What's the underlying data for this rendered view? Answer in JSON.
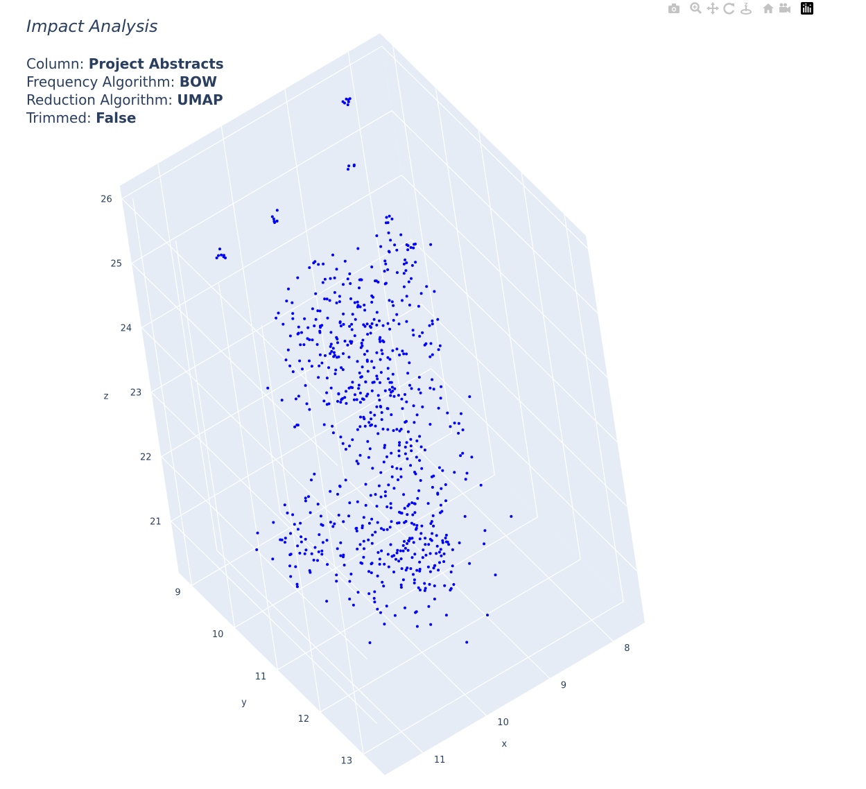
{
  "modebar": {
    "buttons": [
      {
        "name": "camera-icon",
        "title": "Download plot as a png"
      },
      {
        "name": "zoom-icon",
        "title": "Zoom"
      },
      {
        "name": "pan-icon",
        "title": "Pan"
      },
      {
        "name": "orbit-rotation-icon",
        "title": "Orbital rotation"
      },
      {
        "name": "turntable-rotation-icon",
        "title": "Turntable rotation"
      },
      {
        "name": "home-icon",
        "title": "Reset camera to default"
      },
      {
        "name": "camera-view-icon",
        "title": "Reset camera to last save"
      },
      {
        "name": "plotly-logo-icon",
        "title": "Produced with Plotly"
      }
    ]
  },
  "header": {
    "title": "Impact Analysis",
    "lines": [
      {
        "label": "Column: ",
        "value": "Project Abstracts"
      },
      {
        "label": "Frequency Algorithm: ",
        "value": "BOW"
      },
      {
        "label": "Reduction Algorithm: ",
        "value": "UMAP"
      },
      {
        "label": "Trimmed: ",
        "value": "False"
      }
    ]
  },
  "chart_data": {
    "type": "scatter3d",
    "title": "Impact Analysis",
    "marker_color": "#0000ff",
    "background_color": "#e5ecf6",
    "grid": true,
    "axes": {
      "x": {
        "label": "x",
        "ticks": [
          8,
          9,
          10,
          11
        ],
        "range": [
          7.5,
          11.6
        ]
      },
      "y": {
        "label": "y",
        "ticks": [
          9,
          10,
          11,
          12,
          13
        ],
        "range": [
          8.7,
          13.5
        ]
      },
      "z": {
        "label": "z",
        "ticks": [
          21,
          22,
          23,
          24,
          25,
          26
        ],
        "range": [
          20.2,
          26.2
        ]
      }
    },
    "clusters": [
      {
        "center": [
          9.8,
          11.6,
          21.5
        ],
        "spread": [
          0.45,
          0.5,
          0.45
        ],
        "count": 230
      },
      {
        "center": [
          9.5,
          10.9,
          22.9
        ],
        "spread": [
          0.4,
          0.45,
          0.55
        ],
        "count": 190
      },
      {
        "center": [
          9.7,
          10.6,
          24.1
        ],
        "spread": [
          0.4,
          0.45,
          0.45
        ],
        "count": 170
      },
      {
        "center": [
          10.3,
          10.0,
          20.8
        ],
        "spread": [
          0.3,
          0.3,
          0.3
        ],
        "count": 60
      },
      {
        "center": [
          8.6,
          10.4,
          24.0
        ],
        "spread": [
          0.2,
          0.2,
          0.25
        ],
        "count": 25
      },
      {
        "center": [
          8.2,
          9.5,
          23.6
        ],
        "spread": [
          0.2,
          0.2,
          0.2
        ],
        "count": 14
      },
      {
        "center": [
          8.1,
          9.9,
          22.6
        ],
        "spread": [
          0.15,
          0.15,
          0.15
        ],
        "count": 10
      }
    ],
    "small_groups": [
      {
        "center": [
          11.2,
          10.4,
          26.0
        ],
        "count": 7
      },
      {
        "center": [
          10.1,
          10.0,
          25.7
        ],
        "count": 7
      },
      {
        "center": [
          8.3,
          9.0,
          25.8
        ],
        "count": 7
      },
      {
        "center": [
          8.6,
          9.4,
          25.2
        ],
        "count": 4
      },
      {
        "center": [
          8.4,
          10.4,
          24.5
        ],
        "count": 6
      },
      {
        "center": [
          11.0,
          11.5,
          24.0
        ],
        "count": 3
      },
      {
        "center": [
          7.9,
          8.9,
          23.7
        ],
        "count": 5
      }
    ]
  }
}
